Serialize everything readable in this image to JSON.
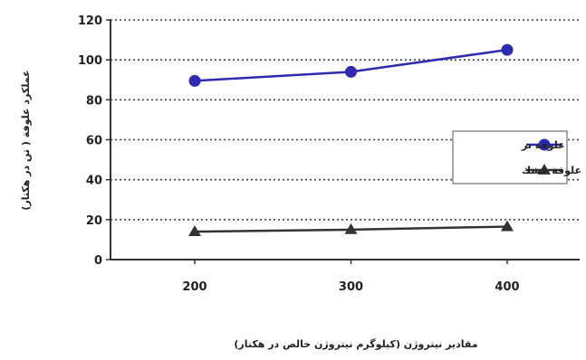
{
  "chart_data": {
    "type": "line",
    "categories": [
      "200",
      "300",
      "400"
    ],
    "x": [
      200,
      300,
      400
    ],
    "series": [
      {
        "name": "علوفة تر",
        "values": [
          89.5,
          94,
          105
        ],
        "color": "#2e2bb0",
        "marker": "circle"
      },
      {
        "name": "علوفة خشك",
        "values": [
          14,
          15,
          16.5
        ],
        "color": "#333333",
        "marker": "triangle"
      }
    ],
    "ylim": [
      0,
      120
    ],
    "yticks": [
      0,
      20,
      40,
      60,
      80,
      100,
      120
    ],
    "xlabel": "مقادير نيتروژن (كيلوگرم نيتروژن خالص در هكتار)",
    "ylabel": "عملكرد علوفة ( تن در هكتار)",
    "grid": true,
    "grid_style": "dotted",
    "legend_position": "right"
  }
}
